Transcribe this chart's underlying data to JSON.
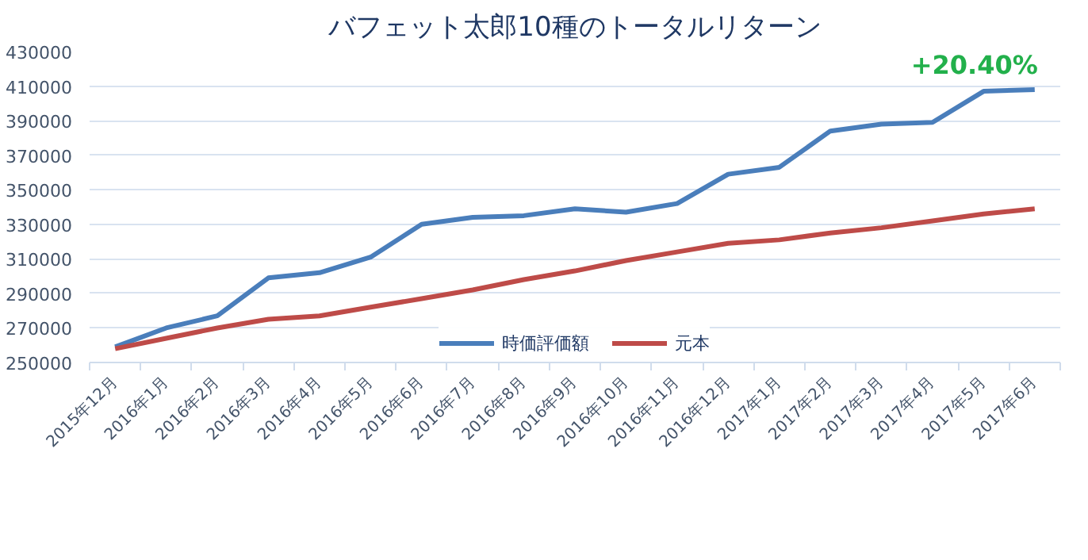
{
  "chart_data": {
    "type": "line",
    "title": "バフェット太郎10種のトータルリターン",
    "categories": [
      "2015年12月",
      "2016年1月",
      "2016年2月",
      "2016年3月",
      "2016年4月",
      "2016年5月",
      "2016年6月",
      "2016年7月",
      "2016年8月",
      "2016年9月",
      "2016年10月",
      "2016年11月",
      "2016年12月",
      "2017年1月",
      "2017年2月",
      "2017年3月",
      "2017年4月",
      "2017年5月",
      "2017年6月"
    ],
    "series": [
      {
        "name": "時価評価額",
        "color": "#4a7ebb",
        "values": [
          259000,
          270000,
          277000,
          299000,
          302000,
          311000,
          330000,
          334000,
          335000,
          339000,
          337000,
          342000,
          359000,
          363000,
          384000,
          388000,
          389000,
          407000,
          408000
        ]
      },
      {
        "name": "元本",
        "color": "#be4b48",
        "values": [
          258000,
          264000,
          270000,
          275000,
          277000,
          282000,
          287000,
          292000,
          298000,
          303000,
          309000,
          314000,
          319000,
          321000,
          325000,
          328000,
          332000,
          336000,
          339000
        ]
      }
    ],
    "ylim": [
      250000,
      430000
    ],
    "yticks": [
      250000,
      270000,
      290000,
      310000,
      330000,
      350000,
      370000,
      390000,
      410000,
      430000
    ],
    "grid": "y",
    "legend": "bottom",
    "marker": "none",
    "line_style": "solid",
    "annotations": [
      {
        "text": "+20.40%",
        "x": "2017年6月",
        "y": 408000
      }
    ]
  }
}
